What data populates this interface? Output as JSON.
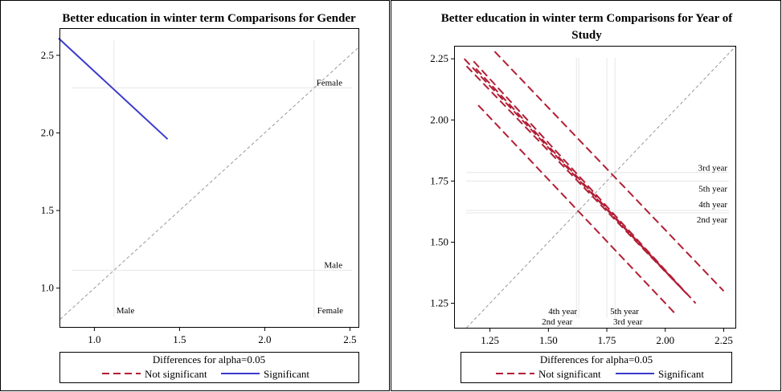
{
  "charts": [
    {
      "type": "line",
      "title": "Better education in winter term Comparisons for Gender",
      "legend_title": "Differences for alpha=0.05",
      "legend": {
        "not_sig": "Not significant",
        "sig": "Significant"
      },
      "xlim": [
        0.8,
        2.55
      ],
      "ylim": [
        0.75,
        2.67
      ],
      "xticks": [
        "1.0",
        "1.5",
        "2.0",
        "2.5"
      ],
      "yticks": [
        "1.0",
        "1.5",
        "2.0",
        "2.5"
      ],
      "groups": [
        {
          "name": "Male",
          "mean": 1.115
        },
        {
          "name": "Female",
          "mean": 2.29
        }
      ],
      "diffs": [
        {
          "x1": 0.79,
          "y1": 2.61,
          "x2": 1.43,
          "y2": 1.96,
          "significant": true
        }
      ]
    },
    {
      "type": "line",
      "title": "Better education in winter term Comparisons for Year of Study",
      "legend_title": "Differences for alpha=0.05",
      "legend": {
        "not_sig": "Not significant",
        "sig": "Significant"
      },
      "xlim": [
        1.1,
        2.3
      ],
      "ylim": [
        1.15,
        2.3
      ],
      "xticks": [
        "1.25",
        "1.50",
        "1.75",
        "2.00",
        "2.25"
      ],
      "yticks": [
        "1.25",
        "1.50",
        "1.75",
        "2.00",
        "2.25"
      ],
      "groups": [
        {
          "name": "3rd year",
          "mean": 1.785
        },
        {
          "name": "5th year",
          "mean": 1.75
        },
        {
          "name": "4th year",
          "mean": 1.63
        },
        {
          "name": "2nd year",
          "mean": 1.62
        }
      ],
      "diffs": [
        {
          "x1": 1.27,
          "y1": 2.28,
          "x2": 2.25,
          "y2": 1.3,
          "significant": false
        },
        {
          "x1": 1.2,
          "y1": 2.06,
          "x2": 2.05,
          "y2": 1.2,
          "significant": false
        },
        {
          "x1": 1.14,
          "y1": 2.25,
          "x2": 2.09,
          "y2": 1.29,
          "significant": false
        },
        {
          "x1": 1.15,
          "y1": 2.22,
          "x2": 2.06,
          "y2": 1.32,
          "significant": false
        },
        {
          "x1": 1.18,
          "y1": 2.24,
          "x2": 2.13,
          "y2": 1.25,
          "significant": false
        },
        {
          "x1": 1.19,
          "y1": 2.21,
          "x2": 2.1,
          "y2": 1.28,
          "significant": false
        }
      ]
    }
  ],
  "colors": {
    "not_sig": "#b21e35",
    "sig": "#3b3bcc",
    "grid": "#e6e6e6",
    "diag": "#999999",
    "frame": "#000000"
  }
}
